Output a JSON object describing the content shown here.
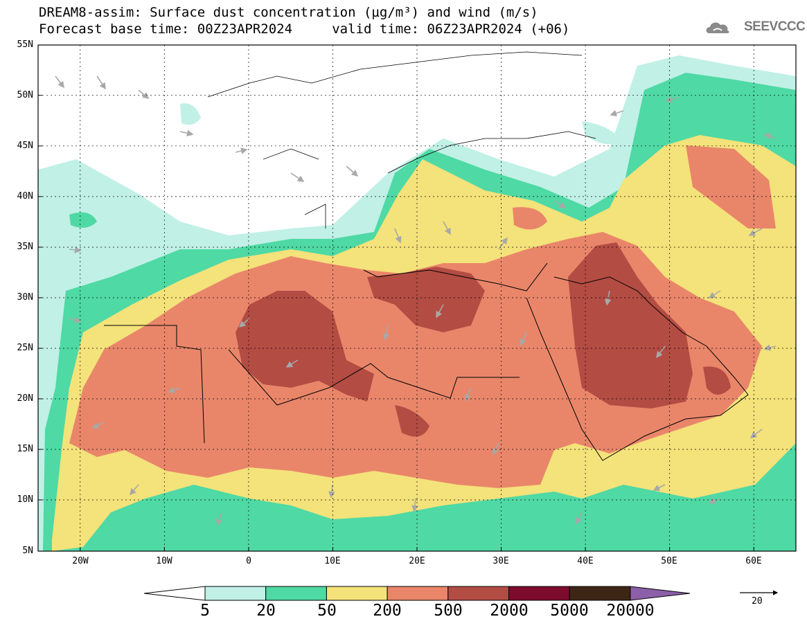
{
  "title": {
    "line1": "DREAM8-assim: Surface dust concentration (µg/m³) and wind (m/s)",
    "line2": "Forecast base time: 00Z23APR2024     valid time: 06Z23APR2024 (+06)"
  },
  "logo": {
    "text": "SEEVCCC",
    "icon": "cloud-icon"
  },
  "axes": {
    "lat_labels": [
      "55N",
      "50N",
      "45N",
      "40N",
      "35N",
      "30N",
      "25N",
      "20N",
      "15N",
      "10N",
      "5N"
    ],
    "lon_labels": [
      "20W",
      "10W",
      "0",
      "10E",
      "20E",
      "30E",
      "40E",
      "50E",
      "60E"
    ],
    "lon_range": [
      -25,
      65
    ],
    "lat_range": [
      5,
      55
    ]
  },
  "legend": {
    "levels": [
      "5",
      "20",
      "50",
      "200",
      "500",
      "2000",
      "5000",
      "20000"
    ],
    "colors": [
      "#ffffff",
      "#c0f0e6",
      "#4fd9a4",
      "#f4e27a",
      "#e9866a",
      "#b34c43",
      "#7d0b2e",
      "#3e2617",
      "#8c5fa8"
    ]
  },
  "vector_reference": {
    "label": "20"
  }
}
